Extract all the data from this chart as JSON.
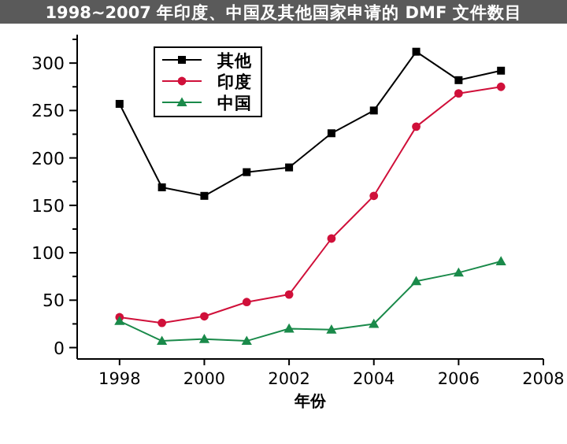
{
  "chart_data": {
    "type": "line",
    "title": "1998~2007 年印度、中国及其他国家申请的 DMF 文件数目",
    "xlabel": "年份",
    "x": [
      1998,
      1999,
      2000,
      2001,
      2002,
      2003,
      2004,
      2005,
      2006,
      2007
    ],
    "series": [
      {
        "name": "其他",
        "color": "#000000",
        "marker": "square",
        "values": [
          257,
          169,
          160,
          185,
          190,
          226,
          250,
          312,
          282,
          292
        ]
      },
      {
        "name": "印度",
        "color": "#d0103a",
        "marker": "circle",
        "values": [
          32,
          26,
          33,
          48,
          56,
          115,
          160,
          233,
          268,
          275
        ]
      },
      {
        "name": "中国",
        "color": "#1a8a4a",
        "marker": "triangle",
        "values": [
          28,
          7,
          9,
          7,
          20,
          19,
          25,
          70,
          79,
          91
        ]
      }
    ],
    "xlim": [
      1997,
      2008
    ],
    "ylim": [
      -12,
      330
    ],
    "xticks": [
      1998,
      2000,
      2002,
      2004,
      2006,
      2008
    ],
    "yticks": [
      0,
      {
        "value": 25,
        "label": null
      },
      50,
      {
        "value": 75,
        "label": null
      },
      100,
      {
        "value": 125,
        "label": null
      },
      150,
      {
        "value": 175,
        "label": null
      },
      200,
      {
        "value": 225,
        "label": null
      },
      250,
      {
        "value": 275,
        "label": null
      },
      300,
      {
        "value": 325,
        "label": null
      }
    ],
    "legend": "top left",
    "grid": false
  }
}
